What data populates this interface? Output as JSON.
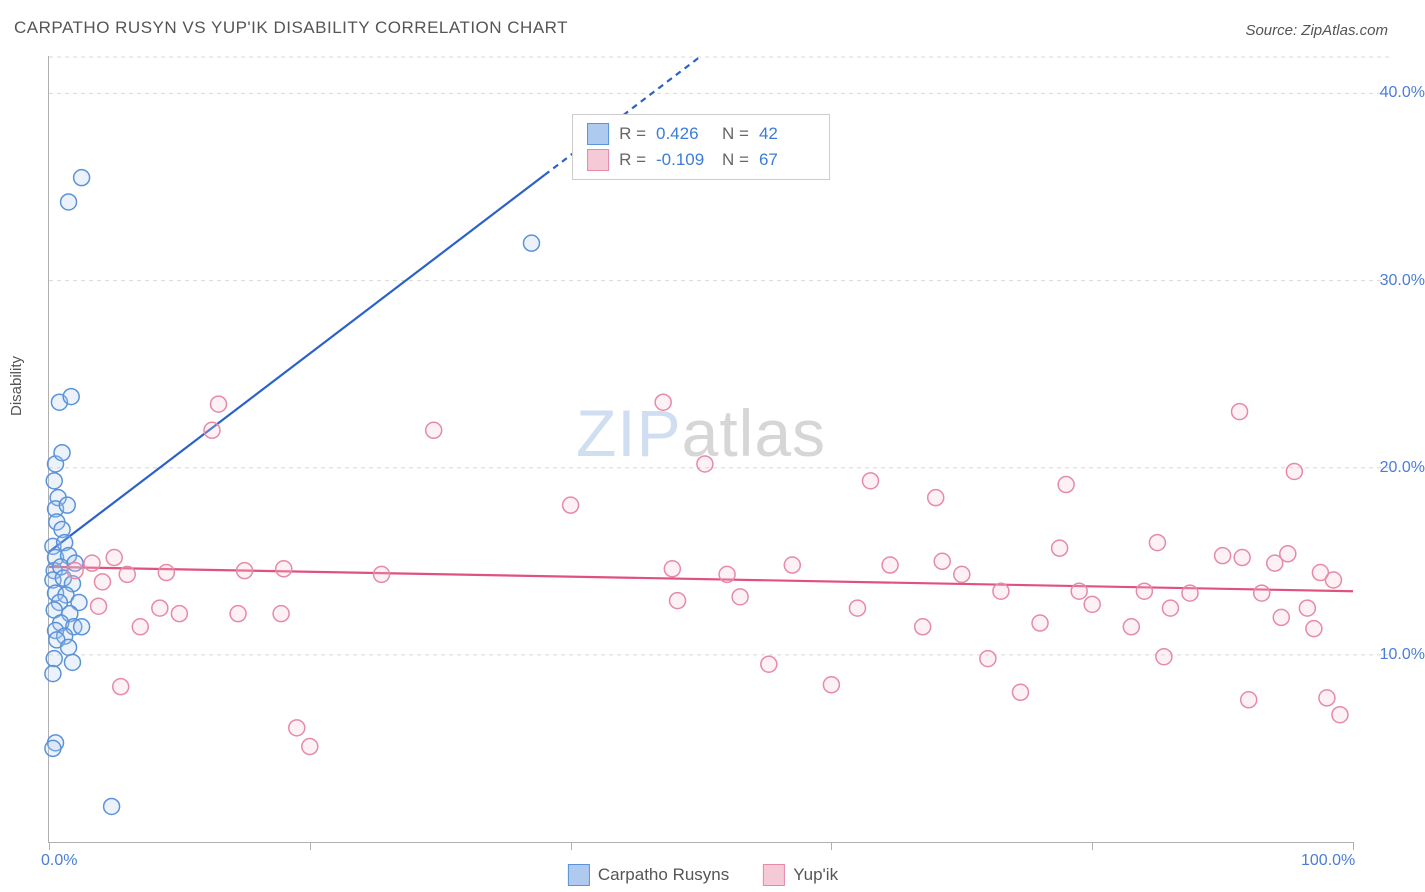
{
  "title": "CARPATHO RUSYN VS YUP'IK DISABILITY CORRELATION CHART",
  "source": "Source: ZipAtlas.com",
  "ylabel": "Disability",
  "watermark": {
    "part1": "ZIP",
    "part2": "atlas"
  },
  "chart": {
    "type": "scatter",
    "xlim": [
      0,
      100
    ],
    "ylim": [
      0,
      42
    ],
    "xtick_labels": [
      {
        "pos": 0,
        "label": "0.0%"
      },
      {
        "pos": 100,
        "label": "100.0%"
      }
    ],
    "xtick_minor": [
      20,
      40,
      60,
      80
    ],
    "ytick_labels": [
      {
        "pos": 10,
        "label": "10.0%"
      },
      {
        "pos": 20,
        "label": "20.0%"
      },
      {
        "pos": 30,
        "label": "30.0%"
      },
      {
        "pos": 40,
        "label": "40.0%"
      }
    ],
    "grid_color": "#d8d8d8",
    "axis_color": "#b0b0b0",
    "background_color": "#ffffff",
    "marker_radius": 8,
    "marker_stroke_width": 1.5,
    "marker_fill_opacity": 0.25,
    "trend_line_width": 2.2,
    "series": [
      {
        "name": "Carpatho Rusyns",
        "color_stroke": "#5b93d8",
        "color_fill": "#aecbef",
        "trend_color": "#2a62c9",
        "R": "0.426",
        "N": "42",
        "trendline": {
          "x1": 0,
          "y1": 15.5,
          "x2": 50,
          "y2": 42,
          "dashed_after_x": 38
        },
        "points": [
          [
            2.5,
            35.5
          ],
          [
            1.5,
            34.2
          ],
          [
            0.8,
            23.5
          ],
          [
            1.7,
            23.8
          ],
          [
            0.5,
            20.2
          ],
          [
            1.0,
            20.8
          ],
          [
            0.4,
            19.3
          ],
          [
            0.7,
            18.4
          ],
          [
            0.5,
            17.8
          ],
          [
            1.4,
            18.0
          ],
          [
            0.6,
            17.1
          ],
          [
            1.0,
            16.7
          ],
          [
            0.3,
            15.8
          ],
          [
            1.2,
            16.0
          ],
          [
            0.5,
            15.2
          ],
          [
            1.5,
            15.3
          ],
          [
            0.4,
            14.5
          ],
          [
            0.9,
            14.7
          ],
          [
            2.0,
            14.9
          ],
          [
            0.3,
            14.0
          ],
          [
            1.1,
            14.1
          ],
          [
            1.8,
            13.8
          ],
          [
            0.5,
            13.3
          ],
          [
            1.3,
            13.2
          ],
          [
            0.8,
            12.8
          ],
          [
            2.3,
            12.8
          ],
          [
            0.4,
            12.4
          ],
          [
            1.6,
            12.2
          ],
          [
            0.9,
            11.7
          ],
          [
            1.9,
            11.5
          ],
          [
            0.5,
            11.3
          ],
          [
            2.5,
            11.5
          ],
          [
            1.2,
            11.0
          ],
          [
            0.6,
            10.8
          ],
          [
            1.5,
            10.4
          ],
          [
            0.4,
            9.8
          ],
          [
            1.8,
            9.6
          ],
          [
            0.3,
            9.0
          ],
          [
            0.5,
            5.3
          ],
          [
            0.3,
            5.0
          ],
          [
            4.8,
            1.9
          ],
          [
            37.0,
            32.0
          ]
        ]
      },
      {
        "name": "Yup'ik",
        "color_stroke": "#e68aa6",
        "color_fill": "#f6c9d6",
        "trend_color": "#e0527e",
        "R": "-0.109",
        "N": "67",
        "trendline": {
          "x1": 0,
          "y1": 14.7,
          "x2": 100,
          "y2": 13.4
        },
        "points": [
          [
            2.0,
            14.5
          ],
          [
            3.3,
            14.9
          ],
          [
            4.1,
            13.9
          ],
          [
            5.0,
            15.2
          ],
          [
            3.8,
            12.6
          ],
          [
            6.0,
            14.3
          ],
          [
            5.5,
            8.3
          ],
          [
            7.0,
            11.5
          ],
          [
            8.5,
            12.5
          ],
          [
            9.0,
            14.4
          ],
          [
            10.0,
            12.2
          ],
          [
            13.0,
            23.4
          ],
          [
            12.5,
            22.0
          ],
          [
            15.0,
            14.5
          ],
          [
            14.5,
            12.2
          ],
          [
            17.8,
            12.2
          ],
          [
            18.0,
            14.6
          ],
          [
            19.0,
            6.1
          ],
          [
            20.0,
            5.1
          ],
          [
            25.5,
            14.3
          ],
          [
            29.5,
            22.0
          ],
          [
            40.0,
            18.0
          ],
          [
            47.1,
            23.5
          ],
          [
            47.8,
            14.6
          ],
          [
            48.2,
            12.9
          ],
          [
            50.3,
            20.2
          ],
          [
            52.0,
            14.3
          ],
          [
            53.0,
            13.1
          ],
          [
            55.2,
            9.5
          ],
          [
            57.0,
            14.8
          ],
          [
            60.0,
            8.4
          ],
          [
            62.0,
            12.5
          ],
          [
            63.0,
            19.3
          ],
          [
            64.5,
            14.8
          ],
          [
            67.0,
            11.5
          ],
          [
            68.0,
            18.4
          ],
          [
            68.5,
            15.0
          ],
          [
            70.0,
            14.3
          ],
          [
            72.0,
            9.8
          ],
          [
            73.0,
            13.4
          ],
          [
            74.5,
            8.0
          ],
          [
            76.0,
            11.7
          ],
          [
            77.5,
            15.7
          ],
          [
            78.0,
            19.1
          ],
          [
            79.0,
            13.4
          ],
          [
            80.0,
            12.7
          ],
          [
            83.0,
            11.5
          ],
          [
            84.0,
            13.4
          ],
          [
            85.0,
            16.0
          ],
          [
            85.5,
            9.9
          ],
          [
            86.0,
            12.5
          ],
          [
            87.5,
            13.3
          ],
          [
            90.0,
            15.3
          ],
          [
            91.3,
            23.0
          ],
          [
            91.5,
            15.2
          ],
          [
            92.0,
            7.6
          ],
          [
            93.0,
            13.3
          ],
          [
            94.0,
            14.9
          ],
          [
            94.5,
            12.0
          ],
          [
            95.0,
            15.4
          ],
          [
            95.5,
            19.8
          ],
          [
            96.5,
            12.5
          ],
          [
            97.0,
            11.4
          ],
          [
            97.5,
            14.4
          ],
          [
            98.0,
            7.7
          ],
          [
            98.5,
            14.0
          ],
          [
            99.0,
            6.8
          ]
        ]
      }
    ]
  },
  "legend_bottom": [
    {
      "label": "Carpatho Rusyns",
      "fill": "#aecbef",
      "stroke": "#5b93d8"
    },
    {
      "label": "Yup'ik",
      "fill": "#f6c9d6",
      "stroke": "#e68aa6"
    }
  ]
}
